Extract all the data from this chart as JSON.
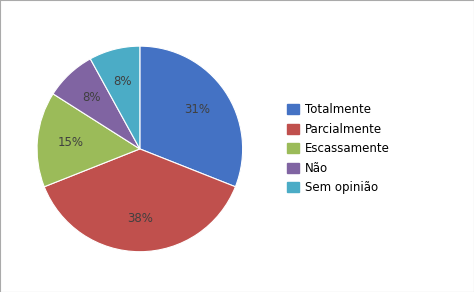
{
  "labels": [
    "Totalmente",
    "Parcialmente",
    "Escassamente",
    "Não",
    "Sem opinião"
  ],
  "values": [
    31,
    38,
    15,
    8,
    8
  ],
  "colors": [
    "#4472C4",
    "#C0504D",
    "#9BBB59",
    "#8064A2",
    "#4BACC6"
  ],
  "startangle": 90,
  "figure_bg": "#ffffff",
  "axes_bg": "#ffffff",
  "text_color": "#404040",
  "pct_fontsize": 8.5,
  "legend_fontsize": 8.5
}
